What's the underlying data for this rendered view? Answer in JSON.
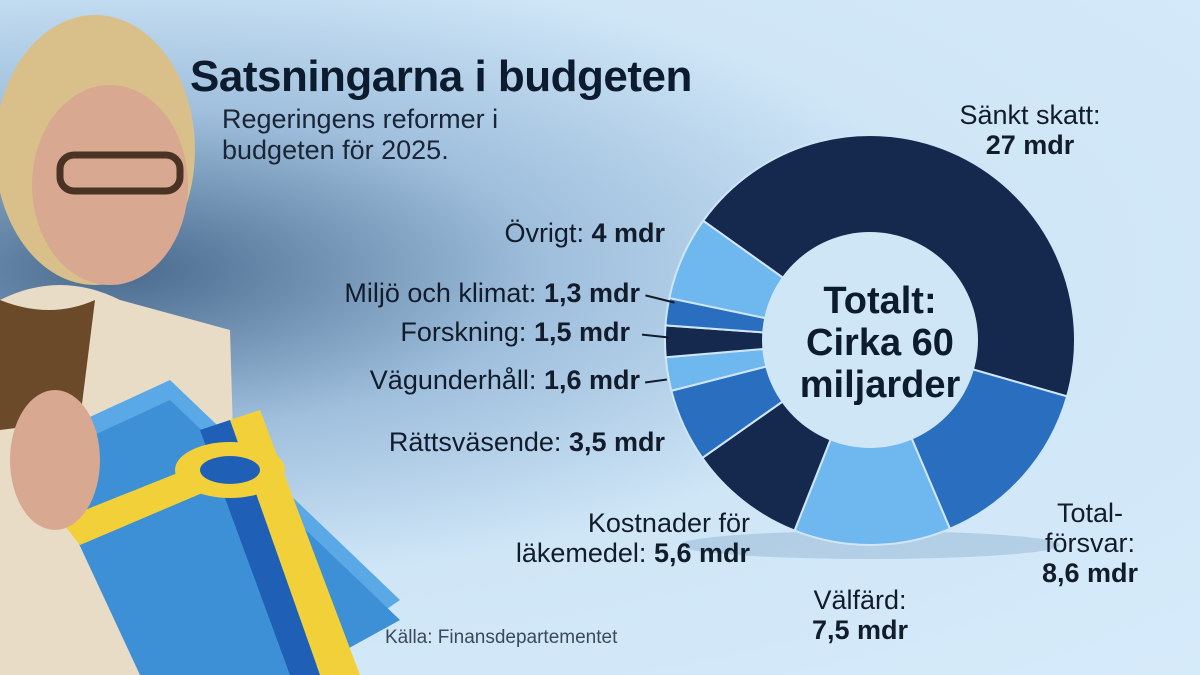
{
  "chart_data": {
    "type": "pie",
    "title": "Satsningarna i budgeten",
    "subtitle": "Regeringens reformer i budgeten för 2025.",
    "center_text": [
      "Totalt:",
      "Cirka 60",
      "miljarder"
    ],
    "source": "Källa: Finansdepartementet",
    "unit": "mdr",
    "slices": [
      {
        "name": "Sänkt skatt",
        "value": 27,
        "value_label": "27 mdr",
        "color": "#14294d"
      },
      {
        "name": "Totalförsvar",
        "value": 8.6,
        "value_label": "8,6 mdr",
        "color": "#2a6fbf"
      },
      {
        "name": "Välfärd",
        "value": 7.5,
        "value_label": "7,5 mdr",
        "color": "#6fb7ef"
      },
      {
        "name": "Kostnader för läkemedel",
        "value": 5.6,
        "value_label": "5,6 mdr",
        "color": "#14294d"
      },
      {
        "name": "Rättsväsende",
        "value": 3.5,
        "value_label": "3,5 mdr",
        "color": "#2a6fbf"
      },
      {
        "name": "Vägunderhåll",
        "value": 1.6,
        "value_label": "1,6 mdr",
        "color": "#6fb7ef"
      },
      {
        "name": "Forskning",
        "value": 1.5,
        "value_label": "1,5 mdr",
        "color": "#14294d"
      },
      {
        "name": "Miljö och klimat",
        "value": 1.3,
        "value_label": "1,3 mdr",
        "color": "#2a6fbf"
      },
      {
        "name": "Övrigt",
        "value": 4,
        "value_label": "4 mdr",
        "color": "#6fb7ef"
      }
    ]
  },
  "labels": {
    "sankt_skatt": {
      "name": "Sänkt skatt:",
      "value": "27 mdr"
    },
    "totalforsvar": {
      "name_line1": "Total-",
      "name_line2": "försvar:",
      "value": "8,6 mdr"
    },
    "valfard": {
      "name": "Välfärd:",
      "value": "7,5 mdr"
    },
    "lakemedel": {
      "name_line1": "Kostnader för",
      "name_line2": "läkemedel:",
      "value": "5,6 mdr"
    },
    "rattsvasende": {
      "name": "Rättsväsende:",
      "value": "3,5 mdr"
    },
    "vagunderhall": {
      "name": "Vägunderhåll:",
      "value": "1,6 mdr"
    },
    "forskning": {
      "name": "Forskning:",
      "value": "1,5 mdr"
    },
    "miljo": {
      "name": "Miljö och klimat:",
      "value": "1,3 mdr"
    },
    "ovrigt": {
      "name": "Övrigt:",
      "value": "4 mdr"
    }
  }
}
